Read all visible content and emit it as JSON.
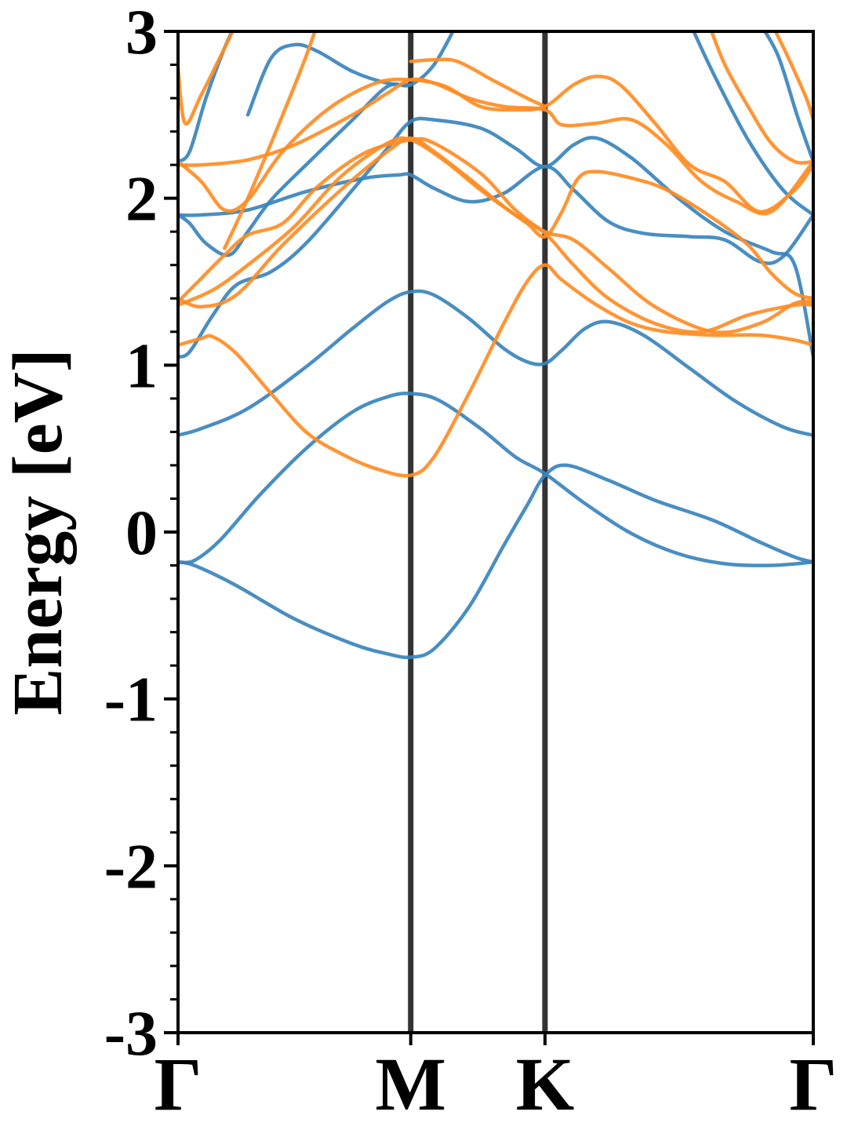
{
  "chart_data": {
    "type": "line",
    "title": "",
    "xlabel": "",
    "ylabel": "Energy [eV]",
    "ylim": [
      -3,
      3
    ],
    "xlim": [
      0,
      2.73
    ],
    "grid": false,
    "legend": "none",
    "x_ticks": [
      {
        "label": "Γ",
        "x": 0
      },
      {
        "label": "M",
        "x": 1
      },
      {
        "label": "K",
        "x": 1.577
      },
      {
        "label": "Γ",
        "x": 2.73
      }
    ],
    "y_ticks": [
      {
        "label": "3",
        "value": 3
      },
      {
        "label": "2",
        "value": 2
      },
      {
        "label": "1",
        "value": 1
      },
      {
        "label": "0",
        "value": 0
      },
      {
        "label": "-1",
        "value": -1
      },
      {
        "label": "-2",
        "value": -2
      },
      {
        "label": "-3",
        "value": -3
      }
    ],
    "y_minor_step": 0.2,
    "high_symmetry_lines": [
      1,
      1.577
    ],
    "colors": {
      "blue": "#3a84bd",
      "orange": "#ff8c24",
      "vline": "#333333"
    },
    "series": [
      {
        "color": "blue",
        "points": [
          [
            0,
            -0.18
          ],
          [
            0.07,
            -0.17
          ],
          [
            0.18,
            -0.05
          ],
          [
            0.35,
            0.22
          ],
          [
            0.55,
            0.5
          ],
          [
            0.75,
            0.72
          ],
          [
            0.9,
            0.81
          ],
          [
            1,
            0.83
          ],
          [
            1.12,
            0.79
          ],
          [
            1.3,
            0.62
          ],
          [
            1.45,
            0.45
          ],
          [
            1.577,
            0.35
          ],
          [
            1.75,
            0.17
          ],
          [
            1.95,
            -0.01
          ],
          [
            2.15,
            -0.13
          ],
          [
            2.35,
            -0.19
          ],
          [
            2.55,
            -0.2
          ],
          [
            2.73,
            -0.18
          ]
        ]
      },
      {
        "color": "blue",
        "points": [
          [
            0,
            -0.18
          ],
          [
            0.07,
            -0.2
          ],
          [
            0.25,
            -0.32
          ],
          [
            0.5,
            -0.52
          ],
          [
            0.75,
            -0.67
          ],
          [
            0.9,
            -0.73
          ],
          [
            1,
            -0.75
          ],
          [
            1.1,
            -0.7
          ],
          [
            1.25,
            -0.45
          ],
          [
            1.4,
            -0.08
          ],
          [
            1.5,
            0.16
          ],
          [
            1.577,
            0.34
          ],
          [
            1.67,
            0.4
          ],
          [
            1.85,
            0.31
          ],
          [
            2.05,
            0.19
          ],
          [
            2.3,
            0.07
          ],
          [
            2.5,
            -0.06
          ],
          [
            2.65,
            -0.15
          ],
          [
            2.73,
            -0.18
          ]
        ]
      },
      {
        "color": "blue",
        "points": [
          [
            0,
            0.58
          ],
          [
            0.1,
            0.62
          ],
          [
            0.3,
            0.74
          ],
          [
            0.55,
            0.99
          ],
          [
            0.75,
            1.22
          ],
          [
            0.9,
            1.38
          ],
          [
            1,
            1.44
          ],
          [
            1.1,
            1.42
          ],
          [
            1.25,
            1.28
          ],
          [
            1.4,
            1.1
          ],
          [
            1.5,
            1.02
          ],
          [
            1.577,
            1.01
          ],
          [
            1.65,
            1.09
          ],
          [
            1.75,
            1.22
          ],
          [
            1.85,
            1.26
          ],
          [
            2,
            1.18
          ],
          [
            2.2,
            0.98
          ],
          [
            2.4,
            0.78
          ],
          [
            2.6,
            0.63
          ],
          [
            2.73,
            0.58
          ]
        ]
      },
      {
        "color": "blue",
        "points": [
          [
            0,
            1.05
          ],
          [
            0.05,
            1.08
          ],
          [
            0.15,
            1.3
          ],
          [
            0.25,
            1.48
          ],
          [
            0.4,
            1.56
          ],
          [
            0.55,
            1.73
          ],
          [
            0.75,
            2.05
          ],
          [
            0.9,
            2.3
          ],
          [
            1,
            2.46
          ],
          [
            1.1,
            2.47
          ],
          [
            1.3,
            2.42
          ],
          [
            1.45,
            2.3
          ],
          [
            1.577,
            2.19
          ],
          [
            1.7,
            2.32
          ],
          [
            1.8,
            2.36
          ],
          [
            1.95,
            2.24
          ],
          [
            2.15,
            2.0
          ],
          [
            2.35,
            1.8
          ],
          [
            2.55,
            1.68
          ],
          [
            2.65,
            1.6
          ],
          [
            2.73,
            1.05
          ]
        ]
      },
      {
        "color": "blue",
        "points": [
          [
            0,
            1.9
          ],
          [
            0.1,
            1.9
          ],
          [
            0.3,
            1.93
          ],
          [
            0.55,
            2.04
          ],
          [
            0.8,
            2.12
          ],
          [
            0.95,
            2.14
          ],
          [
            1,
            2.14
          ],
          [
            1.1,
            2.06
          ],
          [
            1.25,
            1.98
          ],
          [
            1.4,
            2.03
          ],
          [
            1.577,
            2.19
          ],
          [
            1.7,
            2.05
          ],
          [
            1.85,
            1.86
          ],
          [
            2.0,
            1.79
          ],
          [
            2.2,
            1.77
          ],
          [
            2.35,
            1.75
          ],
          [
            2.5,
            1.62
          ],
          [
            2.6,
            1.65
          ],
          [
            2.73,
            1.9
          ]
        ]
      },
      {
        "color": "blue",
        "points": [
          [
            0,
            1.9
          ],
          [
            0.05,
            1.85
          ],
          [
            0.12,
            1.73
          ],
          [
            0.22,
            1.66
          ],
          [
            0.3,
            1.8
          ],
          [
            0.4,
            1.99
          ],
          [
            0.55,
            2.2
          ],
          [
            0.75,
            2.47
          ],
          [
            0.9,
            2.67
          ],
          [
            1,
            2.68
          ],
          [
            1.1,
            2.8
          ],
          [
            1.2,
            3.05
          ]
        ]
      },
      {
        "color": "blue",
        "points": [
          [
            0,
            2.22
          ],
          [
            0.05,
            2.28
          ],
          [
            0.12,
            2.6
          ],
          [
            0.2,
            2.9
          ],
          [
            0.25,
            3.05
          ]
        ]
      },
      {
        "color": "blue",
        "points": [
          [
            0.3,
            2.5
          ],
          [
            0.4,
            2.84
          ],
          [
            0.5,
            2.92
          ],
          [
            0.6,
            2.88
          ],
          [
            0.75,
            2.76
          ],
          [
            0.9,
            2.69
          ],
          [
            1,
            2.68
          ]
        ]
      },
      {
        "color": "blue",
        "points": [
          [
            2.2,
            3.05
          ],
          [
            2.3,
            2.75
          ],
          [
            2.45,
            2.35
          ],
          [
            2.6,
            2.05
          ],
          [
            2.73,
            1.9
          ]
        ]
      },
      {
        "color": "blue",
        "points": [
          [
            2.5,
            3.05
          ],
          [
            2.58,
            2.85
          ],
          [
            2.66,
            2.5
          ],
          [
            2.73,
            2.22
          ]
        ]
      },
      {
        "color": "orange",
        "points": [
          [
            0,
            1.12
          ],
          [
            0.1,
            1.16
          ],
          [
            0.15,
            1.17
          ],
          [
            0.25,
            1.07
          ],
          [
            0.4,
            0.83
          ],
          [
            0.55,
            0.6
          ],
          [
            0.7,
            0.47
          ],
          [
            0.85,
            0.38
          ],
          [
            1,
            0.34
          ],
          [
            1.1,
            0.45
          ],
          [
            1.25,
            0.83
          ],
          [
            1.4,
            1.25
          ],
          [
            1.5,
            1.5
          ],
          [
            1.577,
            1.6
          ],
          [
            1.65,
            1.51
          ],
          [
            1.8,
            1.36
          ],
          [
            1.95,
            1.25
          ],
          [
            2.1,
            1.2
          ],
          [
            2.3,
            1.18
          ],
          [
            2.5,
            1.18
          ],
          [
            2.65,
            1.15
          ],
          [
            2.73,
            1.12
          ]
        ]
      },
      {
        "color": "orange",
        "points": [
          [
            0,
            1.4
          ],
          [
            0.1,
            1.35
          ],
          [
            0.25,
            1.42
          ],
          [
            0.45,
            1.72
          ],
          [
            0.7,
            2.05
          ],
          [
            0.9,
            2.28
          ],
          [
            1,
            2.36
          ],
          [
            1.1,
            2.28
          ],
          [
            1.25,
            2.12
          ],
          [
            1.4,
            1.95
          ],
          [
            1.5,
            1.85
          ],
          [
            1.577,
            1.77
          ],
          [
            1.65,
            1.92
          ],
          [
            1.72,
            2.12
          ],
          [
            1.8,
            2.16
          ],
          [
            1.95,
            2.12
          ],
          [
            2.1,
            2.05
          ],
          [
            2.3,
            1.88
          ],
          [
            2.45,
            1.72
          ],
          [
            2.55,
            1.55
          ],
          [
            2.65,
            1.43
          ],
          [
            2.73,
            1.4
          ]
        ]
      },
      {
        "color": "orange",
        "points": [
          [
            0,
            1.36
          ],
          [
            0.15,
            1.45
          ],
          [
            0.3,
            1.6
          ],
          [
            0.5,
            1.83
          ],
          [
            0.7,
            2.13
          ],
          [
            0.9,
            2.33
          ],
          [
            1,
            2.35
          ],
          [
            1.15,
            2.22
          ],
          [
            1.3,
            2.05
          ],
          [
            1.45,
            1.9
          ],
          [
            1.577,
            1.79
          ],
          [
            1.7,
            1.6
          ],
          [
            1.85,
            1.4
          ],
          [
            2.05,
            1.25
          ],
          [
            2.25,
            1.2
          ],
          [
            2.45,
            1.3
          ],
          [
            2.65,
            1.36
          ],
          [
            2.73,
            1.36
          ]
        ]
      },
      {
        "color": "orange",
        "points": [
          [
            0,
            1.38
          ],
          [
            0.1,
            1.52
          ],
          [
            0.2,
            1.66
          ],
          [
            0.3,
            1.78
          ],
          [
            0.45,
            1.85
          ],
          [
            0.6,
            2.07
          ],
          [
            0.8,
            2.27
          ],
          [
            1,
            2.35
          ],
          [
            1.1,
            2.33
          ],
          [
            1.3,
            2.15
          ],
          [
            1.45,
            1.93
          ],
          [
            1.577,
            1.8
          ],
          [
            1.7,
            1.75
          ],
          [
            1.85,
            1.58
          ],
          [
            2.05,
            1.35
          ],
          [
            2.3,
            1.2
          ],
          [
            2.5,
            1.25
          ],
          [
            2.65,
            1.37
          ],
          [
            2.73,
            1.38
          ]
        ]
      },
      {
        "color": "orange",
        "points": [
          [
            0,
            2.2
          ],
          [
            0.1,
            2.2
          ],
          [
            0.3,
            2.23
          ],
          [
            0.5,
            2.32
          ],
          [
            0.75,
            2.5
          ],
          [
            0.9,
            2.63
          ],
          [
            1,
            2.71
          ],
          [
            1.1,
            2.69
          ],
          [
            1.25,
            2.6
          ],
          [
            1.4,
            2.55
          ],
          [
            1.577,
            2.53
          ],
          [
            1.65,
            2.44
          ],
          [
            1.8,
            2.45
          ],
          [
            1.95,
            2.47
          ],
          [
            2.1,
            2.32
          ],
          [
            2.25,
            2.1
          ],
          [
            2.4,
            1.98
          ],
          [
            2.55,
            1.92
          ],
          [
            2.73,
            2.22
          ]
        ]
      },
      {
        "color": "orange",
        "points": [
          [
            0,
            2.22
          ],
          [
            0.1,
            2.1
          ],
          [
            0.2,
            1.93
          ],
          [
            0.3,
            1.99
          ],
          [
            0.45,
            2.28
          ],
          [
            0.65,
            2.54
          ],
          [
            0.85,
            2.69
          ],
          [
            1,
            2.71
          ],
          [
            1.15,
            2.67
          ],
          [
            1.3,
            2.55
          ],
          [
            1.45,
            2.53
          ],
          [
            1.577,
            2.55
          ],
          [
            1.7,
            2.68
          ],
          [
            1.8,
            2.73
          ],
          [
            1.9,
            2.68
          ],
          [
            2.05,
            2.45
          ],
          [
            2.2,
            2.2
          ],
          [
            2.35,
            2.1
          ],
          [
            2.5,
            1.92
          ],
          [
            2.65,
            2.05
          ],
          [
            2.73,
            2.2
          ]
        ]
      },
      {
        "color": "orange",
        "points": [
          [
            0,
            2.78
          ],
          [
            0.03,
            2.45
          ],
          [
            0.1,
            2.62
          ],
          [
            0.2,
            2.9
          ],
          [
            0.25,
            3.05
          ]
        ]
      },
      {
        "color": "orange",
        "points": [
          [
            0.2,
            1.7
          ],
          [
            0.3,
            2.0
          ],
          [
            0.45,
            2.5
          ],
          [
            0.55,
            2.85
          ],
          [
            0.6,
            3.05
          ]
        ]
      },
      {
        "color": "orange",
        "points": [
          [
            1,
            2.82
          ],
          [
            1.1,
            2.83
          ],
          [
            1.2,
            2.82
          ],
          [
            1.35,
            2.71
          ],
          [
            1.5,
            2.6
          ],
          [
            1.577,
            2.55
          ]
        ]
      },
      {
        "color": "orange",
        "points": [
          [
            2.28,
            3.05
          ],
          [
            2.35,
            2.8
          ],
          [
            2.45,
            2.55
          ],
          [
            2.55,
            2.33
          ],
          [
            2.65,
            2.22
          ],
          [
            2.73,
            2.22
          ]
        ]
      },
      {
        "color": "orange",
        "points": [
          [
            2.55,
            3.05
          ],
          [
            2.62,
            2.85
          ],
          [
            2.7,
            2.6
          ],
          [
            2.73,
            2.47
          ]
        ]
      }
    ]
  }
}
